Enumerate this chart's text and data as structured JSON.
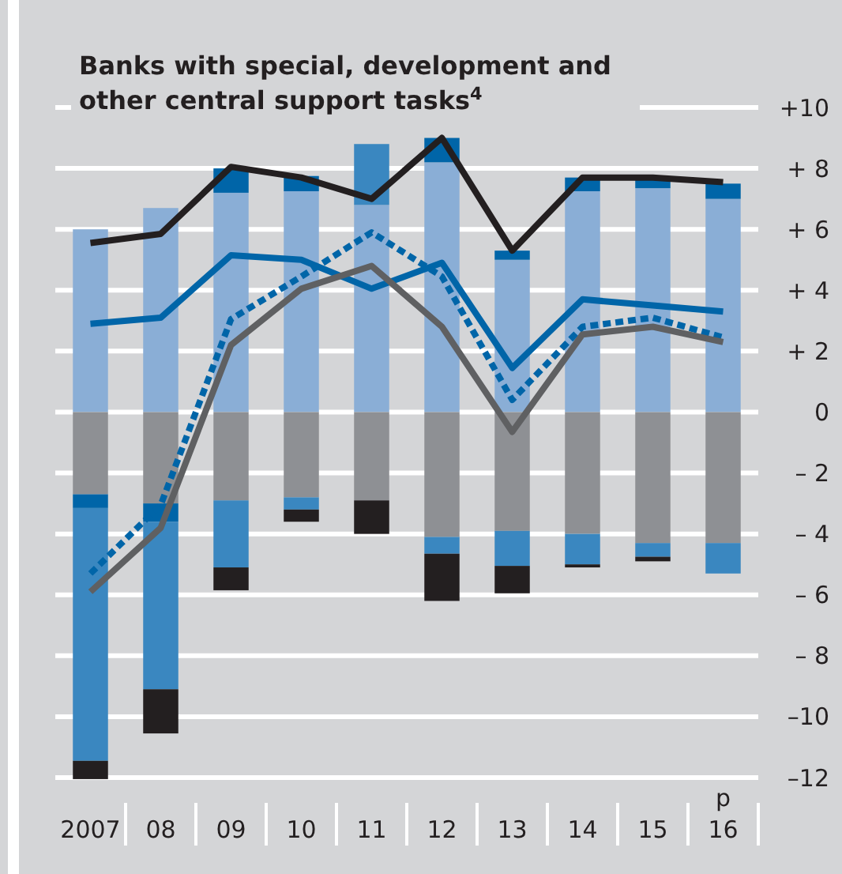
{
  "chart_data": {
    "type": "bar",
    "title": "Banks with special, development and other central support tasks$^{4}$",
    "categories": [
      "2007",
      "08",
      "09",
      "10",
      "11",
      "12",
      "13",
      "14",
      "15",
      "16"
    ],
    "stacked": true,
    "series": [
      {
        "color": "#8aaed6",
        "values": [
          6.0,
          6.7,
          7.2,
          7.25,
          6.8,
          8.2,
          5.0,
          7.25,
          7.35,
          7.0
        ]
      },
      {
        "color": "#8e9094",
        "values": [
          -2.7,
          -3.0,
          -2.9,
          -2.8,
          -2.9,
          -4.1,
          -3.9,
          -4.0,
          -4.3,
          -4.3
        ]
      },
      {
        "color": "#0065a8",
        "values": [
          -0.45,
          -0.6,
          0.8,
          0.5,
          0,
          0.8,
          0.3,
          0.45,
          0.35,
          0.5
        ]
      },
      {
        "color": "#3a87c0",
        "values": [
          -8.3,
          -5.5,
          -2.2,
          -0.4,
          2.0,
          -0.55,
          -1.15,
          -1.0,
          -0.45,
          -1.0
        ]
      },
      {
        "color": "#231f20",
        "values": [
          -0.6,
          -1.45,
          -0.75,
          -0.4,
          -1.1,
          -1.55,
          -0.9,
          -0.1,
          -0.15,
          0
        ]
      },
      {
        "type": "line",
        "color": "#231f20",
        "values": [
          5.55,
          5.85,
          8.05,
          7.7,
          7.0,
          9.0,
          5.3,
          7.7,
          7.7,
          7.55
        ]
      },
      {
        "type": "line",
        "color": "#0065a8",
        "values": [
          2.9,
          3.1,
          5.15,
          5.0,
          4.05,
          4.9,
          1.45,
          3.7,
          3.5,
          3.3
        ]
      },
      {
        "type": "line",
        "color": "#0065a8",
        "line_style": "dashed",
        "values": [
          -5.3,
          -3.05,
          3.05,
          4.45,
          5.9,
          4.45,
          0.4,
          2.8,
          3.1,
          2.45
        ]
      },
      {
        "type": "line",
        "color": "#5f6062",
        "values": [
          -5.9,
          -3.8,
          2.2,
          4.05,
          4.8,
          2.8,
          -0.65,
          2.55,
          2.8,
          2.3
        ]
      }
    ],
    "ylim": [
      -12,
      10
    ],
    "yticks": [
      {
        "value": 10,
        "label": "+10"
      },
      {
        "value": 8,
        "label": "+ 8"
      },
      {
        "value": 6,
        "label": "+ 6"
      },
      {
        "value": 4,
        "label": "+ 4"
      },
      {
        "value": 2,
        "label": "+ 2"
      },
      0,
      {
        "value": -2,
        "label": "– 2"
      },
      {
        "value": -4,
        "label": "– 4"
      },
      {
        "value": -6,
        "label": "– 6"
      },
      {
        "value": -8,
        "label": "– 8"
      },
      {
        "value": -10,
        "label": "–10"
      },
      {
        "value": -12,
        "label": "–12"
      }
    ],
    "grid": "y",
    "annotations": [
      "p"
    ]
  }
}
